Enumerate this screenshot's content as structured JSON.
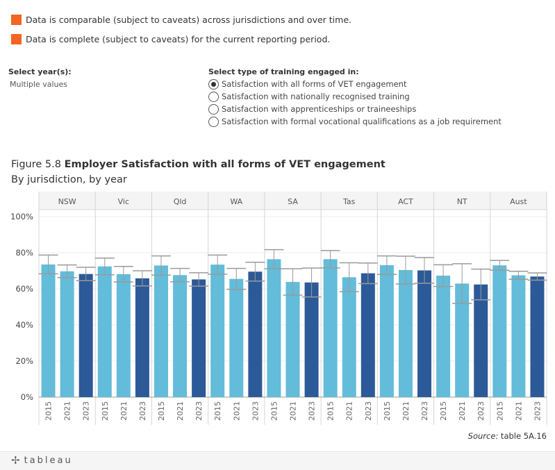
{
  "legend": {
    "items": [
      {
        "label": "Data is comparable (subject to caveats) across jurisdictions and over time.",
        "color": "#f26522"
      },
      {
        "label": "Data is complete (subject to caveats) for the current reporting period.",
        "color": "#f26522"
      }
    ]
  },
  "controls": {
    "year_title": "Select year(s):",
    "year_value": "Multiple values",
    "type_title": "Select type of training engaged in:",
    "type_options": [
      {
        "label": "Satisfaction with all forms of VET engagement",
        "selected": true
      },
      {
        "label": "Satisfaction with nationally recognised training",
        "selected": false
      },
      {
        "label": "Satisfaction with apprenticeships or traineeships",
        "selected": false
      },
      {
        "label": "Satisfaction with formal vocational qualifications as a job requirement",
        "selected": false
      }
    ]
  },
  "figure": {
    "number": "Figure 5.8",
    "title": "Employer Satisfaction with all forms of VET engagement",
    "subtitle": "By jurisdiction, by year"
  },
  "chart_data": {
    "type": "bar",
    "jurisdictions": [
      "NSW",
      "Vic",
      "Qld",
      "WA",
      "SA",
      "Tas",
      "ACT",
      "NT",
      "Aust"
    ],
    "years": [
      "2015",
      "2021",
      "2023"
    ],
    "year_colors": {
      "2015": "#63bcd9",
      "2021": "#63bcd9",
      "2023": "#2c5a98"
    },
    "values": [
      [
        73.5,
        69.7,
        68.2
      ],
      [
        72.4,
        68.1,
        65.8
      ],
      [
        72.9,
        67.6,
        65.2
      ],
      [
        73.4,
        65.5,
        69.5
      ],
      [
        76.4,
        63.8,
        63.5
      ],
      [
        76.4,
        66.4,
        68.6
      ],
      [
        73.1,
        70.4,
        70.2
      ],
      [
        67.3,
        62.9,
        62.4
      ],
      [
        73.0,
        67.5,
        66.8
      ]
    ],
    "ci_low": [
      [
        68.3,
        66.2,
        64.5
      ],
      [
        67.8,
        63.8,
        61.6
      ],
      [
        67.6,
        63.9,
        61.5
      ],
      [
        68.1,
        59.7,
        64.3
      ],
      [
        71.1,
        56.5,
        55.5
      ],
      [
        71.6,
        58.4,
        62.9
      ],
      [
        68.0,
        62.7,
        63.1
      ],
      [
        61.3,
        51.9,
        53.9
      ],
      [
        70.3,
        65.3,
        64.8
      ]
    ],
    "ci_high": [
      [
        78.7,
        73.2,
        71.9
      ],
      [
        77.0,
        72.4,
        70.0
      ],
      [
        78.2,
        71.3,
        68.9
      ],
      [
        78.7,
        71.3,
        74.7
      ],
      [
        81.7,
        71.1,
        71.5
      ],
      [
        81.2,
        74.4,
        74.3
      ],
      [
        78.2,
        78.1,
        77.3
      ],
      [
        73.3,
        73.9,
        70.9
      ],
      [
        75.7,
        69.7,
        68.8
      ]
    ],
    "ylim": [
      0,
      100
    ],
    "yticks": [
      "0%",
      "20%",
      "40%",
      "60%",
      "80%",
      "100%"
    ],
    "ylabel": "",
    "xlabel": ""
  },
  "source": {
    "prefix": "Source:",
    "text": " table 5A.16"
  },
  "footer": {
    "logo_text": "tableau",
    "logo_mark": "✢"
  }
}
